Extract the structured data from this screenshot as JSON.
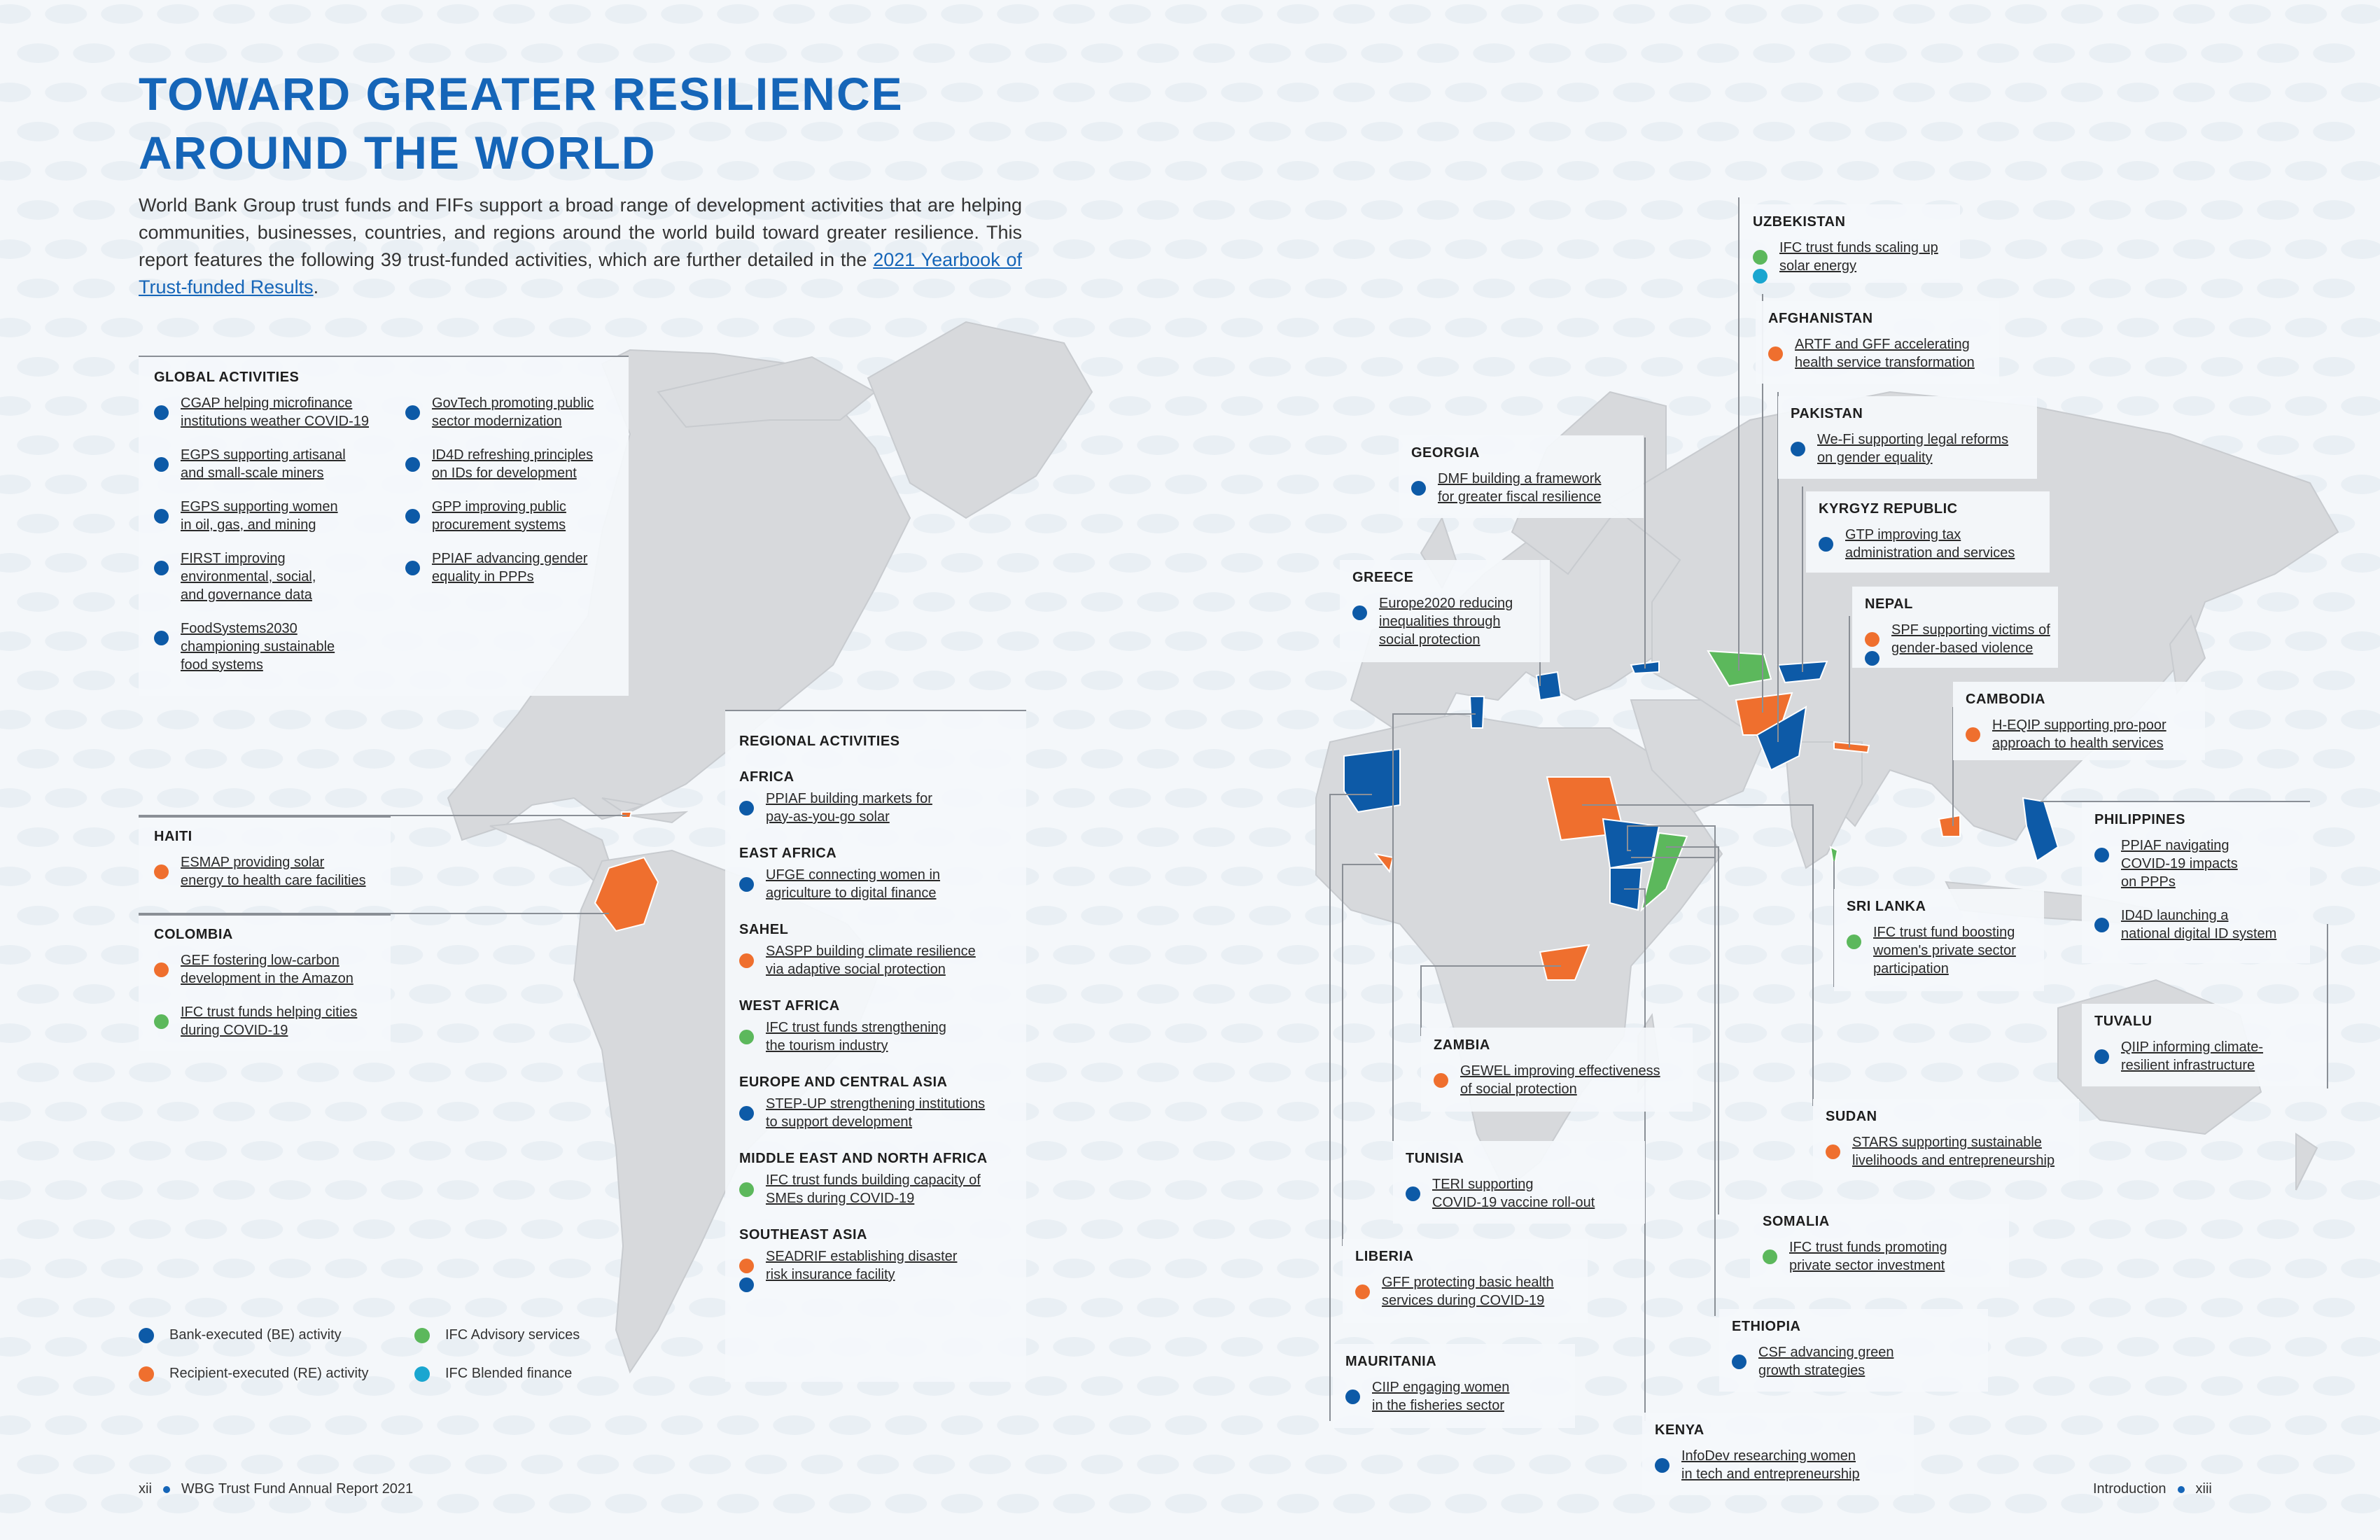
{
  "title_lines": [
    "TOWARD GREATER RESILIENCE",
    "AROUND THE WORLD"
  ],
  "intro": {
    "text": "World Bank Group trust funds and FIFs support a broad range of development activities that are helping communities, businesses, countries, and regions around the world build toward greater resilience. This report features the following 39 trust-funded activities, which are further detailed in the ",
    "link": "2021 Yearbook of Trust-funded Results",
    "end": "."
  },
  "colors": {
    "be": "#0d5aa7",
    "re": "#ef6f2e",
    "ifc_advisory": "#5cb85c",
    "ifc_blended": "#1aa6d0",
    "title": "#1565b8"
  },
  "global": {
    "heading": "GLOBAL ACTIVITIES",
    "col1": [
      {
        "types": [
          "be"
        ],
        "lines": [
          "CGAP helping microfinance",
          "institutions weather COVID-19"
        ]
      },
      {
        "types": [
          "be"
        ],
        "lines": [
          "EGPS supporting artisanal",
          "and small-scale miners"
        ]
      },
      {
        "types": [
          "be"
        ],
        "lines": [
          "EGPS supporting women",
          "in oil, gas, and mining"
        ]
      },
      {
        "types": [
          "be"
        ],
        "lines": [
          "FIRST improving",
          "environmental, social,",
          "and governance data"
        ]
      },
      {
        "types": [
          "be"
        ],
        "lines": [
          "FoodSystems2030",
          "championing sustainable",
          "food systems"
        ]
      }
    ],
    "col2": [
      {
        "types": [
          "be"
        ],
        "lines": [
          "GovTech promoting public",
          "sector modernization"
        ]
      },
      {
        "types": [
          "be"
        ],
        "lines": [
          "ID4D refreshing principles",
          "on IDs for development"
        ]
      },
      {
        "types": [
          "be"
        ],
        "lines": [
          "GPP improving public",
          "procurement systems"
        ]
      },
      {
        "types": [
          "be"
        ],
        "lines": [
          "PPIAF advancing gender",
          "equality in PPPs"
        ]
      }
    ]
  },
  "haiti": {
    "heading": "HAITI",
    "items": [
      {
        "types": [
          "re"
        ],
        "lines": [
          "ESMAP providing solar",
          "energy to health care facilities"
        ]
      }
    ]
  },
  "colombia": {
    "heading": "COLOMBIA",
    "items": [
      {
        "types": [
          "re"
        ],
        "lines": [
          "GEF fostering low-carbon",
          "development in the Amazon"
        ]
      },
      {
        "types": [
          "ifca"
        ],
        "lines": [
          "IFC trust funds helping cities",
          "during COVID-19"
        ]
      }
    ]
  },
  "regional": {
    "heading": "REGIONAL ACTIVITIES",
    "groups": [
      {
        "heading": "AFRICA",
        "items": [
          {
            "types": [
              "be"
            ],
            "lines": [
              "PPIAF building markets for",
              "pay-as-you-go solar"
            ]
          }
        ]
      },
      {
        "heading": "EAST AFRICA",
        "items": [
          {
            "types": [
              "be"
            ],
            "lines": [
              "UFGE connecting women in",
              "agriculture to digital finance"
            ]
          }
        ]
      },
      {
        "heading": "SAHEL",
        "items": [
          {
            "types": [
              "re"
            ],
            "lines": [
              "SASPP building climate resilience",
              "via adaptive social protection"
            ]
          }
        ]
      },
      {
        "heading": "WEST AFRICA",
        "items": [
          {
            "types": [
              "ifca"
            ],
            "lines": [
              "IFC trust funds strengthening",
              "the tourism industry"
            ]
          }
        ]
      },
      {
        "heading": "EUROPE AND CENTRAL ASIA",
        "items": [
          {
            "types": [
              "be"
            ],
            "lines": [
              "STEP-UP strengthening institutions",
              "to support development"
            ]
          }
        ]
      },
      {
        "heading": "MIDDLE EAST AND NORTH AFRICA",
        "items": [
          {
            "types": [
              "ifca"
            ],
            "lines": [
              "IFC trust funds building capacity of",
              "SMEs during COVID-19"
            ]
          }
        ]
      },
      {
        "heading": "SOUTHEAST ASIA",
        "items": [
          {
            "types": [
              "re",
              "be"
            ],
            "lines": [
              "SEADRIF establishing disaster",
              "risk insurance facility"
            ]
          }
        ]
      }
    ]
  },
  "legend": {
    "be": "Bank-executed (BE) activity",
    "re": "Recipient-executed (RE) activity",
    "ifca": "IFC Advisory services",
    "ifcb": "IFC Blended finance"
  },
  "countries": [
    {
      "id": "uzbekistan",
      "heading": "UZBEKISTAN",
      "items": [
        {
          "types": [
            "ifca",
            "ifcb"
          ],
          "lines": [
            "IFC trust funds scaling up",
            "solar energy"
          ]
        }
      ]
    },
    {
      "id": "afghanistan",
      "heading": "AFGHANISTAN",
      "items": [
        {
          "types": [
            "re"
          ],
          "lines": [
            "ARTF and GFF accelerating",
            "health service transformation"
          ]
        }
      ]
    },
    {
      "id": "pakistan",
      "heading": "PAKISTAN",
      "items": [
        {
          "types": [
            "be"
          ],
          "lines": [
            "We-Fi supporting legal reforms",
            "on gender equality"
          ]
        }
      ]
    },
    {
      "id": "georgia",
      "heading": "GEORGIA",
      "items": [
        {
          "types": [
            "be"
          ],
          "lines": [
            "DMF building a framework",
            "for greater fiscal resilience"
          ]
        }
      ]
    },
    {
      "id": "kyrgyz",
      "heading": "KYRGYZ REPUBLIC",
      "items": [
        {
          "types": [
            "be"
          ],
          "lines": [
            "GTP improving tax",
            "administration and services"
          ]
        }
      ]
    },
    {
      "id": "greece",
      "heading": "GREECE",
      "items": [
        {
          "types": [
            "be"
          ],
          "lines": [
            "Europe2020 reducing",
            "inequalities through",
            "social protection"
          ]
        }
      ]
    },
    {
      "id": "nepal",
      "heading": "NEPAL",
      "items": [
        {
          "types": [
            "re",
            "be"
          ],
          "lines": [
            "SPF supporting victims of",
            "gender-based violence"
          ]
        }
      ]
    },
    {
      "id": "cambodia",
      "heading": "CAMBODIA",
      "items": [
        {
          "types": [
            "re"
          ],
          "lines": [
            "H-EQIP supporting pro-poor",
            "approach to health services"
          ]
        }
      ]
    },
    {
      "id": "philippines",
      "heading": "PHILIPPINES",
      "items": [
        {
          "types": [
            "be"
          ],
          "lines": [
            "PPIAF navigating",
            "COVID-19 impacts",
            "on PPPs"
          ]
        },
        {
          "types": [
            "be"
          ],
          "lines": [
            "ID4D launching a",
            "national digital ID system"
          ]
        }
      ]
    },
    {
      "id": "srilanka",
      "heading": "SRI LANKA",
      "items": [
        {
          "types": [
            "ifca"
          ],
          "lines": [
            "IFC trust fund boosting",
            "women's private sector",
            "participation"
          ]
        }
      ]
    },
    {
      "id": "tuvalu",
      "heading": "TUVALU",
      "items": [
        {
          "types": [
            "be"
          ],
          "lines": [
            "QIIP informing climate-",
            "resilient infrastructure"
          ]
        }
      ]
    },
    {
      "id": "zambia",
      "heading": "ZAMBIA",
      "items": [
        {
          "types": [
            "re"
          ],
          "lines": [
            "GEWEL improving effectiveness",
            "of social protection"
          ]
        }
      ]
    },
    {
      "id": "sudan",
      "heading": "SUDAN",
      "items": [
        {
          "types": [
            "re"
          ],
          "lines": [
            "STARS supporting sustainable",
            "livelihoods and entrepreneurship"
          ]
        }
      ]
    },
    {
      "id": "tunisia",
      "heading": "TUNISIA",
      "items": [
        {
          "types": [
            "be"
          ],
          "lines": [
            "TERI supporting",
            "COVID-19 vaccine roll-out"
          ]
        }
      ]
    },
    {
      "id": "somalia",
      "heading": "SOMALIA",
      "items": [
        {
          "types": [
            "ifca"
          ],
          "lines": [
            "IFC trust funds promoting",
            "private sector investment"
          ]
        }
      ]
    },
    {
      "id": "liberia",
      "heading": "LIBERIA",
      "items": [
        {
          "types": [
            "re"
          ],
          "lines": [
            "GFF protecting basic health",
            "services during COVID-19"
          ]
        }
      ]
    },
    {
      "id": "ethiopia",
      "heading": "ETHIOPIA",
      "items": [
        {
          "types": [
            "be"
          ],
          "lines": [
            "CSF advancing green",
            "growth strategies"
          ]
        }
      ]
    },
    {
      "id": "mauritania",
      "heading": "MAURITANIA",
      "items": [
        {
          "types": [
            "be"
          ],
          "lines": [
            "CIIP engaging women",
            "in the fisheries sector"
          ]
        }
      ]
    },
    {
      "id": "kenya",
      "heading": "KENYA",
      "items": [
        {
          "types": [
            "be"
          ],
          "lines": [
            "InfoDev researching women",
            "in tech and entrepreneurship"
          ]
        }
      ]
    }
  ],
  "footer": {
    "left_page": "xii",
    "left_text": "WBG Trust Fund Annual Report 2021",
    "right_text": "Introduction",
    "right_page": "xiii"
  }
}
